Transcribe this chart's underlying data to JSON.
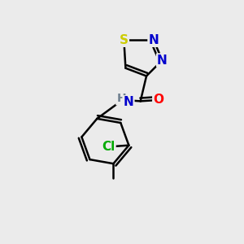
{
  "background_color": "#ebebeb",
  "figsize": [
    3.0,
    3.0
  ],
  "dpi": 100,
  "bond_color": "#000000",
  "bond_width": 1.8,
  "font_size": 11,
  "colors": {
    "S": "#cccc00",
    "N": "#0000cc",
    "O": "#ff0000",
    "Cl": "#00aa00",
    "H": "#708090",
    "C": "#000000"
  }
}
